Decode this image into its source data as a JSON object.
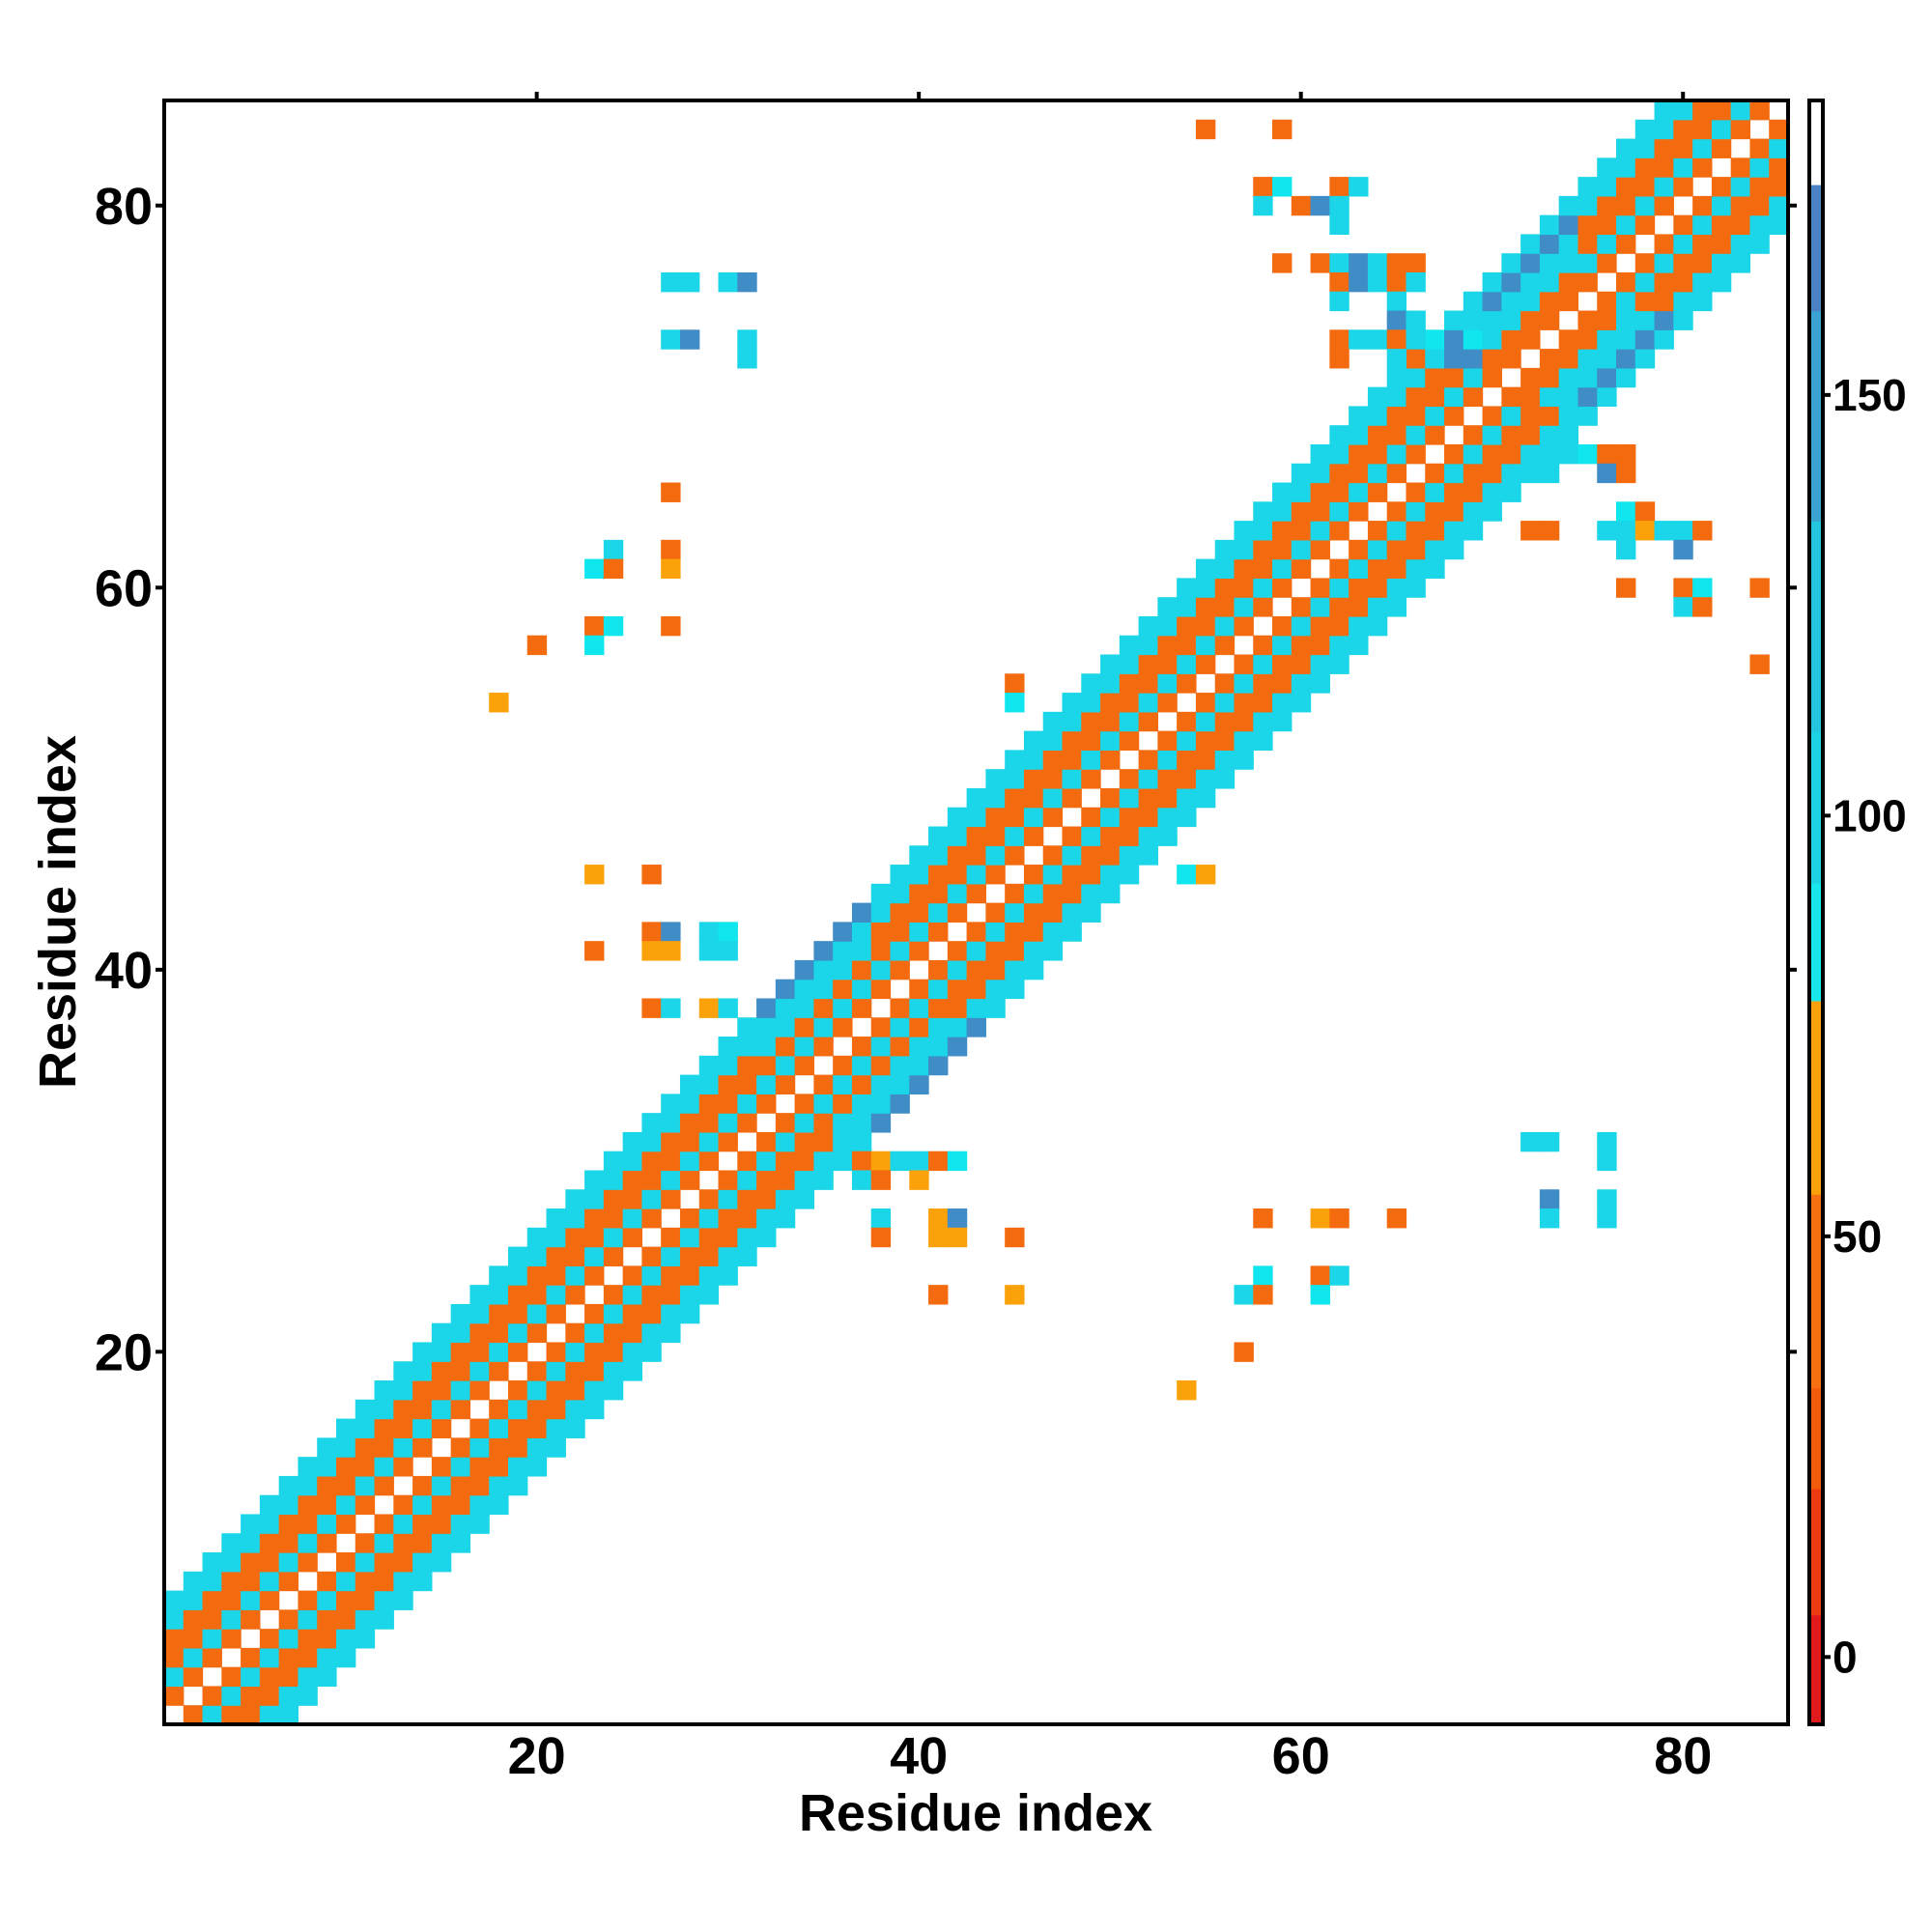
{
  "chart_data": {
    "type": "heatmap",
    "xlabel": "Residue index",
    "ylabel": "Residue index",
    "xlim": [
      0.5,
      85.5
    ],
    "ylim": [
      0.5,
      85.5
    ],
    "x_ticks": [
      20,
      40,
      60,
      80
    ],
    "y_ticks": [
      20,
      40,
      60,
      80
    ],
    "colorbar": {
      "range": [
        -8,
        185
      ],
      "ticks": [
        0,
        50,
        100,
        150
      ],
      "bands": [
        {
          "from": -8,
          "to": 5,
          "color": "#e0191b"
        },
        {
          "from": 5,
          "to": 20,
          "color": "#ec3a12"
        },
        {
          "from": 20,
          "to": 32,
          "color": "#f25c0c"
        },
        {
          "from": 32,
          "to": 55,
          "color": "#f77012"
        },
        {
          "from": 55,
          "to": 78,
          "color": "#fba10a"
        },
        {
          "from": 78,
          "to": 92,
          "color": "#18e8ec"
        },
        {
          "from": 92,
          "to": 110,
          "color": "#1ed2e6"
        },
        {
          "from": 110,
          "to": 135,
          "color": "#22c6de"
        },
        {
          "from": 135,
          "to": 160,
          "color": "#3aa3d2"
        },
        {
          "from": 160,
          "to": 175,
          "color": "#4a82c4"
        },
        {
          "from": 175,
          "to": 185,
          "color": "#ffffff"
        }
      ]
    },
    "color_classes": {
      "R": "#e8231a",
      "O": "#f46a0f",
      "Y": "#fba20a",
      "C": "#1ad6e8",
      "A": "#0fe6ee",
      "B": "#3f8cc6"
    },
    "diagonal_band": {
      "offsets": {
        "1": "O",
        "2": "C",
        "3": "O",
        "4": "O",
        "5": "C",
        "6": "C"
      },
      "segments": [
        {
          "from": 32,
          "to": 37,
          "offsets": {
            "1": "O",
            "2": "C",
            "3": "O",
            "4": "C",
            "5": "C",
            "6": "B"
          }
        },
        {
          "from": 70,
          "to": 74,
          "offsets": {
            "1": "O",
            "2": "O",
            "3": "C",
            "4": "C",
            "5": "B",
            "6": "C"
          }
        }
      ]
    },
    "off_diagonal_cells": [
      [
        55,
        84,
        "O"
      ],
      [
        59,
        84,
        "O"
      ],
      [
        58,
        81,
        "O"
      ],
      [
        59,
        81,
        "A"
      ],
      [
        62,
        81,
        "O"
      ],
      [
        63,
        81,
        "C"
      ],
      [
        58,
        80,
        "C"
      ],
      [
        60,
        80,
        "O"
      ],
      [
        61,
        80,
        "B"
      ],
      [
        62,
        80,
        "C"
      ],
      [
        62,
        79,
        "C"
      ],
      [
        59,
        77,
        "O"
      ],
      [
        61,
        77,
        "O"
      ],
      [
        62,
        77,
        "C"
      ],
      [
        63,
        77,
        "B"
      ],
      [
        64,
        77,
        "C"
      ],
      [
        65,
        77,
        "O"
      ],
      [
        66,
        77,
        "O"
      ],
      [
        62,
        76,
        "O"
      ],
      [
        63,
        76,
        "B"
      ],
      [
        64,
        76,
        "C"
      ],
      [
        65,
        76,
        "O"
      ],
      [
        66,
        76,
        "C"
      ],
      [
        62,
        75,
        "C"
      ],
      [
        65,
        75,
        "C"
      ],
      [
        65,
        74,
        "B"
      ],
      [
        66,
        74,
        "C"
      ],
      [
        62,
        73,
        "O"
      ],
      [
        63,
        73,
        "C"
      ],
      [
        64,
        73,
        "C"
      ],
      [
        65,
        73,
        "O"
      ],
      [
        66,
        73,
        "C"
      ],
      [
        67,
        73,
        "A"
      ],
      [
        68,
        73,
        "B"
      ],
      [
        69,
        73,
        "A"
      ],
      [
        62,
        72,
        "O"
      ],
      [
        65,
        72,
        "C"
      ],
      [
        66,
        72,
        "O"
      ],
      [
        67,
        72,
        "C"
      ],
      [
        68,
        72,
        "B"
      ],
      [
        69,
        72,
        "B"
      ],
      [
        27,
        76,
        "C"
      ],
      [
        28,
        76,
        "C"
      ],
      [
        30,
        76,
        "C"
      ],
      [
        31,
        76,
        "B"
      ],
      [
        27,
        73,
        "C"
      ],
      [
        28,
        73,
        "B"
      ],
      [
        31,
        73,
        "C"
      ],
      [
        31,
        72,
        "C"
      ],
      [
        27,
        65,
        "O"
      ],
      [
        24,
        62,
        "C"
      ],
      [
        27,
        62,
        "O"
      ],
      [
        23,
        61,
        "A"
      ],
      [
        24,
        61,
        "O"
      ],
      [
        27,
        61,
        "Y"
      ],
      [
        23,
        58,
        "O"
      ],
      [
        24,
        58,
        "A"
      ],
      [
        27,
        58,
        "O"
      ],
      [
        20,
        57,
        "O"
      ],
      [
        23,
        57,
        "A"
      ],
      [
        18,
        54,
        "Y"
      ],
      [
        45,
        55,
        "O"
      ],
      [
        45,
        54,
        "A"
      ],
      [
        23,
        45,
        "Y"
      ],
      [
        26,
        45,
        "O"
      ],
      [
        26,
        42,
        "O"
      ],
      [
        27,
        42,
        "B"
      ],
      [
        29,
        42,
        "C"
      ],
      [
        30,
        42,
        "A"
      ],
      [
        23,
        41,
        "O"
      ],
      [
        26,
        41,
        "Y"
      ],
      [
        27,
        41,
        "Y"
      ],
      [
        29,
        41,
        "C"
      ],
      [
        30,
        41,
        "C"
      ],
      [
        26,
        38,
        "O"
      ],
      [
        27,
        38,
        "C"
      ],
      [
        29,
        38,
        "Y"
      ],
      [
        30,
        38,
        "C"
      ],
      [
        54,
        45,
        "A"
      ],
      [
        55,
        45,
        "Y"
      ],
      [
        73,
        67,
        "C"
      ],
      [
        74,
        67,
        "C"
      ],
      [
        75,
        67,
        "A"
      ],
      [
        76,
        67,
        "O"
      ],
      [
        77,
        67,
        "O"
      ],
      [
        73,
        66,
        "C"
      ],
      [
        76,
        66,
        "B"
      ],
      [
        77,
        66,
        "O"
      ],
      [
        77,
        64,
        "A"
      ],
      [
        78,
        64,
        "O"
      ],
      [
        72,
        63,
        "O"
      ],
      [
        73,
        63,
        "O"
      ],
      [
        76,
        63,
        "C"
      ],
      [
        77,
        63,
        "C"
      ],
      [
        78,
        63,
        "Y"
      ],
      [
        79,
        63,
        "C"
      ],
      [
        80,
        63,
        "C"
      ],
      [
        81,
        63,
        "O"
      ],
      [
        77,
        62,
        "C"
      ],
      [
        80,
        62,
        "B"
      ],
      [
        77,
        60,
        "O"
      ],
      [
        80,
        60,
        "O"
      ],
      [
        81,
        60,
        "A"
      ],
      [
        84,
        60,
        "O"
      ],
      [
        80,
        59,
        "C"
      ],
      [
        81,
        59,
        "O"
      ],
      [
        84,
        56,
        "O"
      ],
      [
        37,
        30,
        "O"
      ],
      [
        38,
        30,
        "Y"
      ],
      [
        39,
        30,
        "C"
      ],
      [
        40,
        30,
        "C"
      ],
      [
        41,
        30,
        "O"
      ],
      [
        42,
        30,
        "A"
      ],
      [
        37,
        29,
        "C"
      ],
      [
        38,
        29,
        "O"
      ],
      [
        40,
        29,
        "Y"
      ],
      [
        38,
        27,
        "C"
      ],
      [
        41,
        27,
        "Y"
      ],
      [
        42,
        27,
        "B"
      ],
      [
        38,
        26,
        "O"
      ],
      [
        41,
        26,
        "Y"
      ],
      [
        42,
        26,
        "Y"
      ],
      [
        45,
        26,
        "O"
      ],
      [
        41,
        23,
        "O"
      ],
      [
        45,
        23,
        "Y"
      ],
      [
        72,
        31,
        "C"
      ],
      [
        73,
        31,
        "C"
      ],
      [
        76,
        31,
        "C"
      ],
      [
        76,
        30,
        "C"
      ],
      [
        73,
        28,
        "B"
      ],
      [
        76,
        28,
        "C"
      ],
      [
        73,
        27,
        "C"
      ],
      [
        76,
        27,
        "C"
      ],
      [
        58,
        27,
        "O"
      ],
      [
        61,
        27,
        "Y"
      ],
      [
        62,
        27,
        "O"
      ],
      [
        65,
        27,
        "O"
      ],
      [
        58,
        24,
        "A"
      ],
      [
        61,
        24,
        "O"
      ],
      [
        62,
        24,
        "C"
      ],
      [
        57,
        23,
        "C"
      ],
      [
        58,
        23,
        "O"
      ],
      [
        61,
        23,
        "A"
      ],
      [
        57,
        20,
        "O"
      ],
      [
        54,
        18,
        "Y"
      ]
    ]
  }
}
